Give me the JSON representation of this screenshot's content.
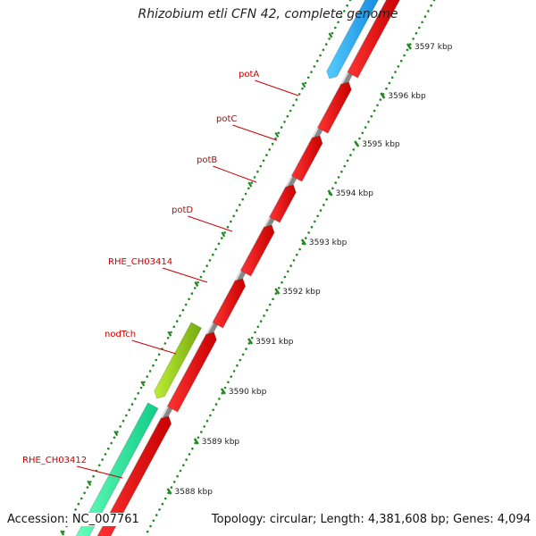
{
  "title": "Rhizobium etli CFN 42, complete genome",
  "footer": {
    "accession": "Accession: NC_007761",
    "stats": "Topology: circular; Length: 4,381,608 bp; Genes: 4,094"
  },
  "genes": [
    {
      "label": "potA",
      "color": "#ee1111"
    },
    {
      "label": "potC",
      "color": "#ee1111"
    },
    {
      "label": "potB",
      "color": "#ee1111"
    },
    {
      "label": "potD",
      "color": "#ee1111"
    },
    {
      "label": "RHE_CH03414",
      "color": "#ee1111"
    },
    {
      "label": "nodTch",
      "color": "#99dd22"
    },
    {
      "label": "RHE_CH03412",
      "color": "#22ee99"
    }
  ],
  "scale_ticks": [
    "3597 kbp",
    "3596 kbp",
    "3595 kbp",
    "3594 kbp",
    "3593 kbp",
    "3592 kbp",
    "3591 kbp",
    "3590 kbp",
    "3589 kbp",
    "3588 kbp"
  ],
  "colors": {
    "forward_strand": "#ee1111",
    "reverse_top": "#22aaee",
    "reverse_green": "#99dd22",
    "reverse_teal": "#22ee99",
    "backbone": "#888888",
    "dots": "#228822",
    "label_red": "#cc0000"
  }
}
